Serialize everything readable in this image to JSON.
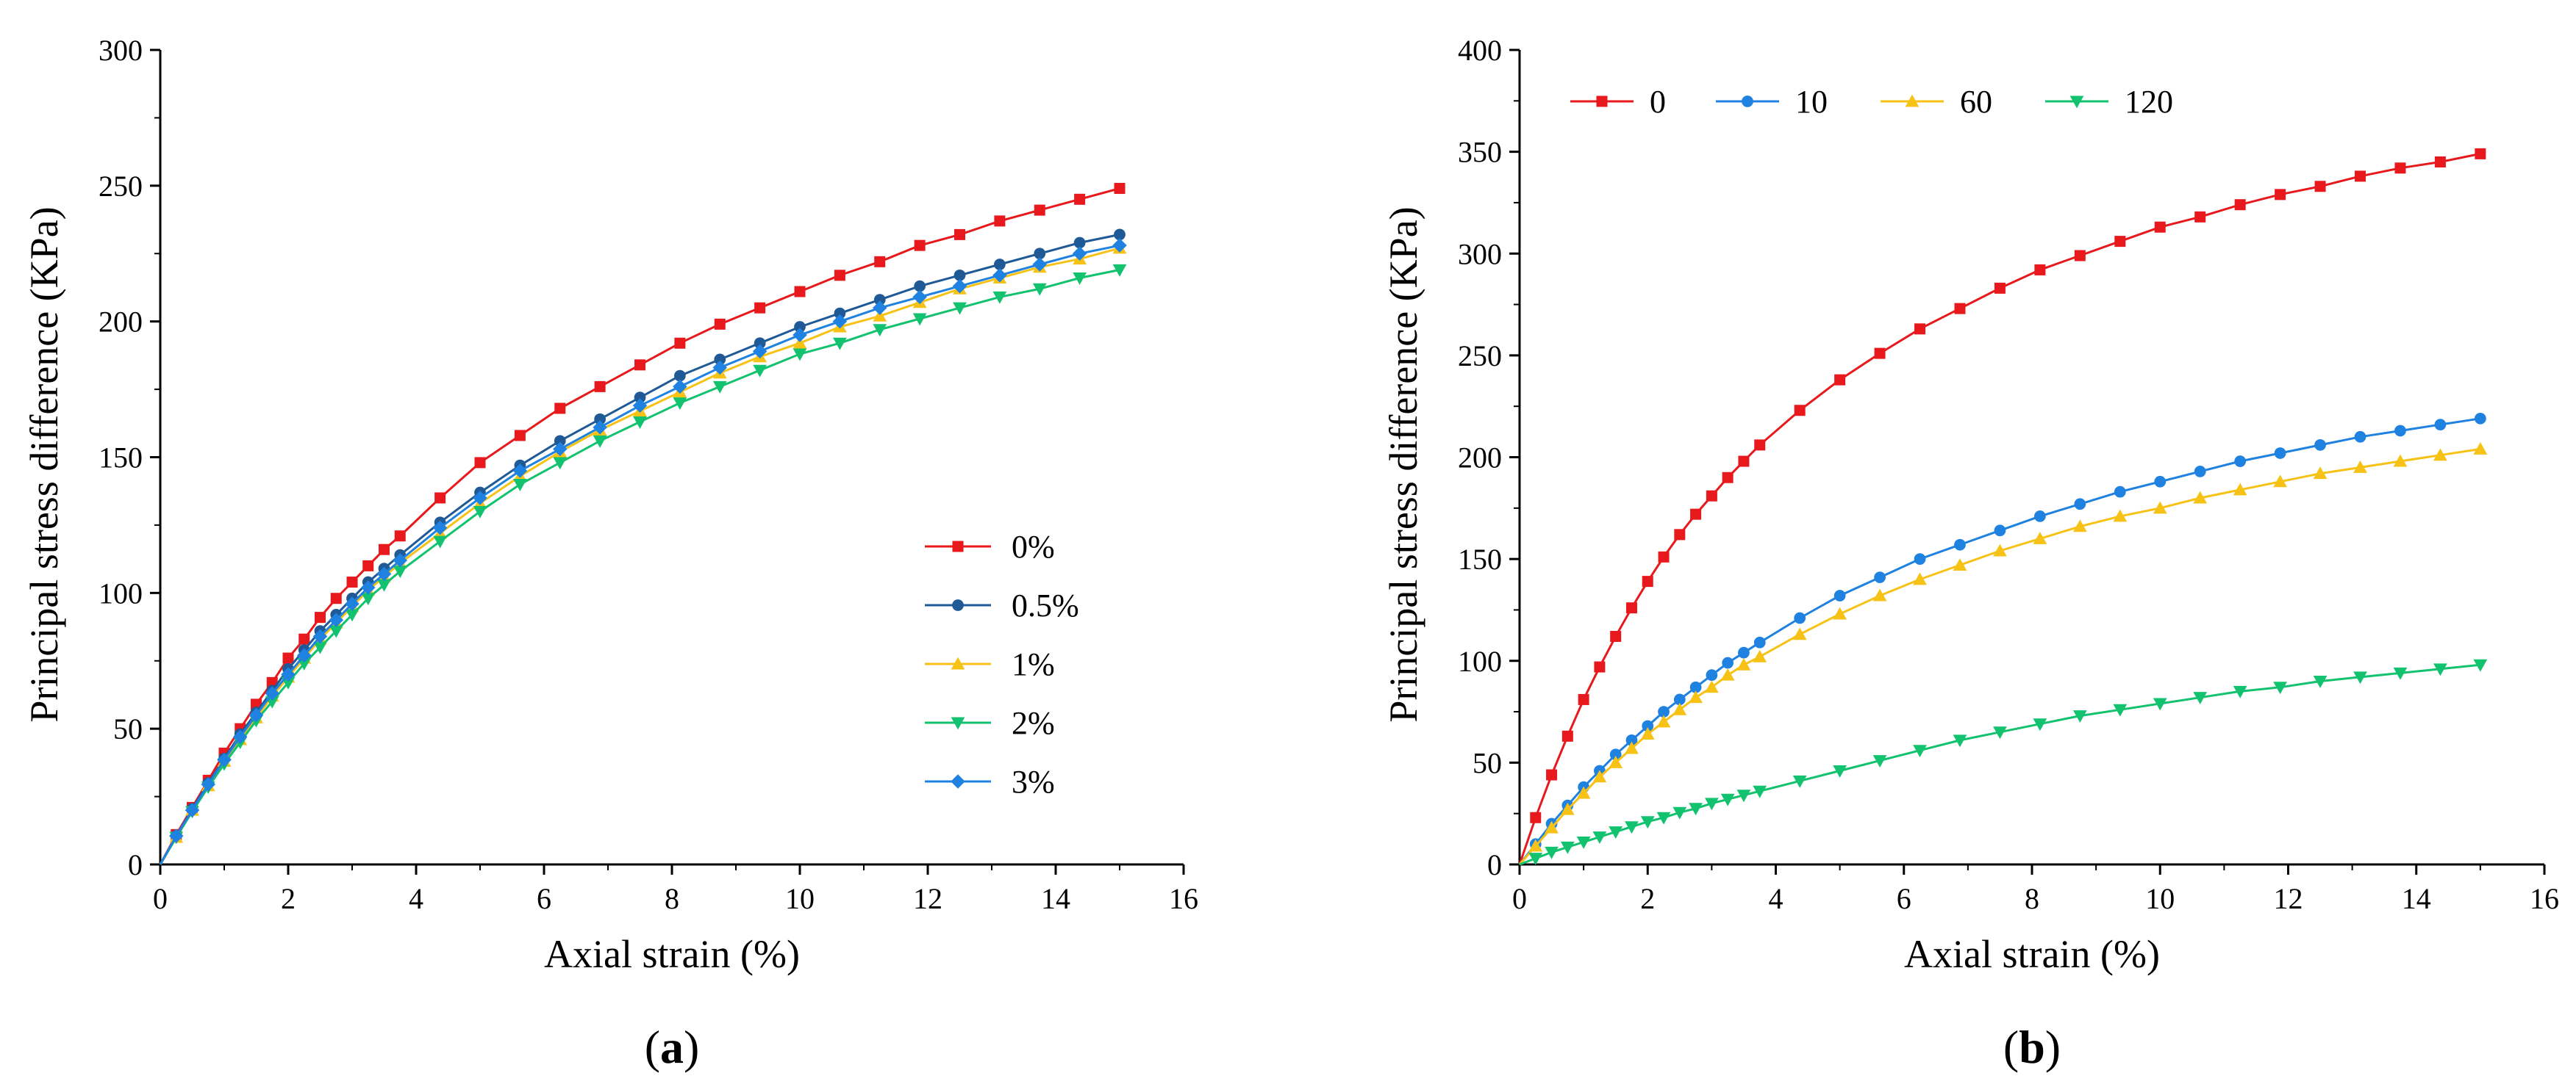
{
  "chart_data": [
    {
      "type": "line",
      "panel_label": "(a)",
      "xlabel": "Axial strain (%)",
      "ylabel": "Principal stress difference (KPa)",
      "xlim": [
        0,
        16
      ],
      "ylim": [
        0,
        300
      ],
      "x_ticks": [
        0,
        2,
        4,
        6,
        8,
        10,
        12,
        14,
        16
      ],
      "y_ticks": [
        0,
        50,
        100,
        150,
        200,
        250,
        300
      ],
      "legend_position": "center-right",
      "x": [
        0,
        0.25,
        0.5,
        0.75,
        1,
        1.25,
        1.5,
        1.75,
        2,
        2.25,
        2.5,
        2.75,
        3,
        3.25,
        3.5,
        3.75,
        4.375,
        5,
        5.625,
        6.25,
        6.875,
        7.5,
        8.125,
        8.75,
        9.375,
        10,
        10.625,
        11.25,
        11.875,
        12.5,
        13.125,
        13.75,
        14.375,
        15
      ],
      "series": [
        {
          "name": "0%",
          "color": "#e8191c",
          "marker": "square",
          "values": [
            0,
            11,
            21,
            31,
            41,
            50,
            59,
            67,
            76,
            83,
            91,
            98,
            104,
            110,
            116,
            121,
            135,
            148,
            158,
            168,
            176,
            184,
            192,
            199,
            205,
            211,
            217,
            222,
            228,
            232,
            237,
            241,
            245,
            249
          ]
        },
        {
          "name": "0.5%",
          "color": "#1f5a96",
          "marker": "circle",
          "values": [
            0,
            10.5,
            20.5,
            30,
            39,
            48,
            56,
            64,
            72,
            79,
            86,
            92,
            98,
            104,
            109,
            114,
            126,
            137,
            147,
            156,
            164,
            172,
            180,
            186,
            192,
            198,
            203,
            208,
            213,
            217,
            221,
            225,
            229,
            232
          ]
        },
        {
          "name": "1%",
          "color": "#f7c216",
          "marker": "triangle-up",
          "values": [
            0,
            10,
            20,
            29,
            38,
            46,
            54,
            62,
            69,
            76,
            83,
            89,
            95,
            101,
            106,
            111,
            122,
            133,
            143,
            152,
            160,
            167,
            174,
            181,
            187,
            192,
            198,
            202,
            207,
            212,
            216,
            220,
            223,
            227
          ]
        },
        {
          "name": "2%",
          "color": "#12c26e",
          "marker": "triangle-down",
          "values": [
            0,
            10,
            19.5,
            28.5,
            37,
            45,
            53,
            60,
            67,
            74,
            80,
            86,
            92,
            98,
            103,
            108,
            119,
            130,
            140,
            148,
            156,
            163,
            170,
            176,
            182,
            188,
            192,
            197,
            201,
            205,
            209,
            212,
            216,
            219
          ]
        },
        {
          "name": "3%",
          "color": "#1f82e0",
          "marker": "diamond",
          "values": [
            0,
            10.5,
            20,
            29.5,
            38.5,
            47,
            55,
            63,
            70,
            77,
            84,
            90,
            96,
            102,
            107,
            112,
            124,
            135,
            145,
            153,
            161,
            169,
            176,
            183,
            189,
            195,
            200,
            205,
            209,
            213,
            217,
            221,
            225,
            228
          ]
        }
      ]
    },
    {
      "type": "line",
      "panel_label": "(b)",
      "xlabel": "Axial strain (%)",
      "ylabel": "Principal stress difference (KPa)",
      "xlim": [
        0,
        16
      ],
      "ylim": [
        0,
        400
      ],
      "x_ticks": [
        0,
        2,
        4,
        6,
        8,
        10,
        12,
        14,
        16
      ],
      "y_ticks": [
        0,
        50,
        100,
        150,
        200,
        250,
        300,
        350,
        400
      ],
      "legend_position": "top-left",
      "x": [
        0,
        0.25,
        0.5,
        0.75,
        1,
        1.25,
        1.5,
        1.75,
        2,
        2.25,
        2.5,
        2.75,
        3,
        3.25,
        3.5,
        3.75,
        4.375,
        5,
        5.625,
        6.25,
        6.875,
        7.5,
        8.125,
        8.75,
        9.375,
        10,
        10.625,
        11.25,
        11.875,
        12.5,
        13.125,
        13.75,
        14.375,
        15
      ],
      "series": [
        {
          "name": "0",
          "color": "#e8191c",
          "marker": "square",
          "values": [
            0,
            23,
            44,
            63,
            81,
            97,
            112,
            126,
            139,
            151,
            162,
            172,
            181,
            190,
            198,
            206,
            223,
            238,
            251,
            263,
            273,
            283,
            292,
            299,
            306,
            313,
            318,
            324,
            329,
            333,
            338,
            342,
            345,
            349
          ]
        },
        {
          "name": "10",
          "color": "#1f82e0",
          "marker": "circle",
          "values": [
            0,
            10,
            20,
            29,
            38,
            46,
            54,
            61,
            68,
            75,
            81,
            87,
            93,
            99,
            104,
            109,
            121,
            132,
            141,
            150,
            157,
            164,
            171,
            177,
            183,
            188,
            193,
            198,
            202,
            206,
            210,
            213,
            216,
            219
          ]
        },
        {
          "name": "60",
          "color": "#f7c216",
          "marker": "triangle-up",
          "values": [
            0,
            9,
            18,
            27,
            35,
            43,
            50,
            57,
            64,
            70,
            76,
            82,
            87,
            93,
            98,
            102,
            113,
            123,
            132,
            140,
            147,
            154,
            160,
            166,
            171,
            175,
            180,
            184,
            188,
            192,
            195,
            198,
            201,
            204
          ]
        },
        {
          "name": "120",
          "color": "#12c26e",
          "marker": "triangle-down",
          "values": [
            0,
            3,
            6,
            8.5,
            11,
            13.5,
            16,
            18.5,
            21,
            23,
            25.5,
            27.5,
            30,
            32,
            34,
            36,
            41,
            46,
            51,
            56,
            61,
            65,
            69,
            73,
            76,
            79,
            82,
            85,
            87,
            90,
            92,
            94,
            96,
            98
          ]
        }
      ]
    }
  ]
}
